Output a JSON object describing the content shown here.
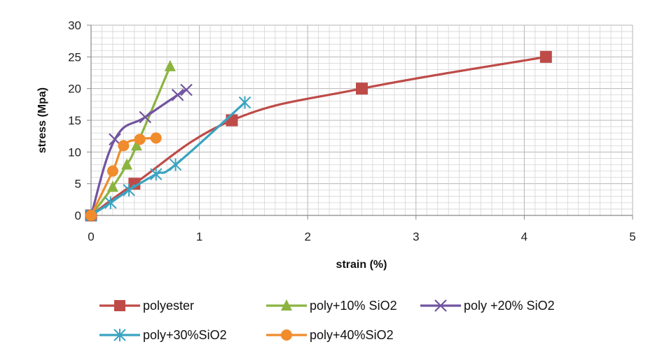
{
  "chart_data": {
    "type": "line",
    "title": "",
    "xlabel": "strain (%)",
    "ylabel": "stress (Mpa)",
    "xlim": [
      0,
      5
    ],
    "ylim": [
      0,
      30
    ],
    "xticks": [
      0,
      1,
      2,
      3,
      4,
      5
    ],
    "yticks": [
      0,
      5,
      10,
      15,
      20,
      25,
      30
    ],
    "xtick_labels": [
      "0",
      "1",
      "2",
      "3",
      "4",
      "5"
    ],
    "ytick_labels": [
      "0",
      "5",
      "10",
      "15",
      "20",
      "25",
      "30"
    ],
    "grid": true,
    "legend_position": "bottom",
    "series": [
      {
        "name": "polyester",
        "color": "#be4b48",
        "marker": "square",
        "points": [
          [
            0,
            0
          ],
          [
            0.4,
            5
          ],
          [
            1.3,
            15
          ],
          [
            2.5,
            20
          ],
          [
            4.2,
            25
          ]
        ]
      },
      {
        "name": "poly+10% SiO2",
        "color": "#8bb440",
        "marker": "triangle",
        "points": [
          [
            0,
            0
          ],
          [
            0.2,
            4.5
          ],
          [
            0.33,
            8
          ],
          [
            0.42,
            11
          ],
          [
            0.73,
            23.5
          ]
        ]
      },
      {
        "name": "poly +20% SiO2",
        "color": "#7254a0",
        "marker": "x",
        "points": [
          [
            0,
            0
          ],
          [
            0.22,
            12
          ],
          [
            0.5,
            15.5
          ],
          [
            0.8,
            19
          ],
          [
            0.88,
            19.8
          ]
        ]
      },
      {
        "name": "poly+30%SiO2",
        "color": "#3aa3c0",
        "marker": "star",
        "points": [
          [
            0,
            0
          ],
          [
            0.18,
            2
          ],
          [
            0.35,
            4
          ],
          [
            0.6,
            6.5
          ],
          [
            0.78,
            8
          ],
          [
            1.42,
            17.8
          ]
        ]
      },
      {
        "name": "poly+40%SiO2",
        "color": "#f08c2c",
        "marker": "circle",
        "points": [
          [
            0,
            0
          ],
          [
            0.2,
            7
          ],
          [
            0.3,
            11
          ],
          [
            0.45,
            12
          ],
          [
            0.6,
            12.2
          ]
        ]
      }
    ]
  }
}
